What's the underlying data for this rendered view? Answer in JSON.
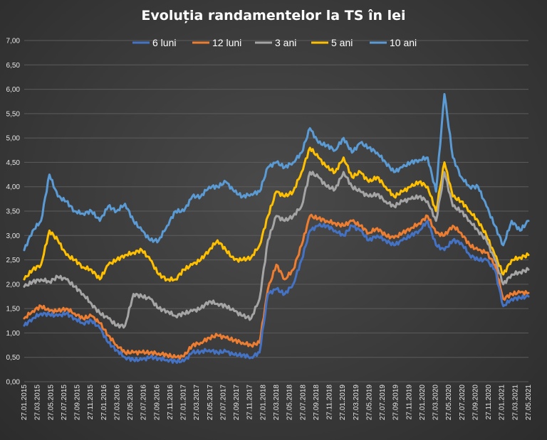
{
  "chart_data": {
    "type": "line",
    "title": "Evoluția  randamentelor  la TS în lei",
    "xlabel": "",
    "ylabel": "",
    "ylim": [
      0,
      7
    ],
    "y_ticks": [
      "0,00",
      "0,50",
      "1,00",
      "1,50",
      "2,00",
      "2,50",
      "3,00",
      "3,50",
      "4,00",
      "4,50",
      "5,00",
      "5,50",
      "6,00",
      "6,50",
      "7,00"
    ],
    "x_tick_labels": [
      "27.01.2015",
      "27.03.2015",
      "27.05.2015",
      "27.07.2015",
      "27.09.2015",
      "27.11.2015",
      "27.01.2016",
      "27.03.2016",
      "27.05.2016",
      "27.07.2016",
      "27.09.2016",
      "27.11.2016",
      "27.01.2017",
      "27.03.2017",
      "27.05.2017",
      "27.07.2017",
      "27.09.2017",
      "27.11.2017",
      "27.01.2018",
      "27.03.2018",
      "27.05.2018",
      "27.07.2018",
      "27.09.2018",
      "27.11.2018",
      "27.01.2019",
      "27.03.2019",
      "27.05.2019",
      "27.07.2019",
      "27.09.2019",
      "27.11.2019",
      "27.01.2020",
      "27.03.2020",
      "27.05.2020",
      "27.07.2020",
      "27.09.2020",
      "27.11.2020",
      "27.01.2021",
      "27.03.2021",
      "27.05.2021"
    ],
    "grid": true,
    "legend_position": "top",
    "series": [
      {
        "name": "6 luni",
        "color": "#4472c4",
        "values": [
          1.15,
          1.3,
          1.4,
          1.38,
          1.35,
          1.4,
          1.3,
          1.2,
          1.25,
          1.1,
          0.8,
          0.65,
          0.5,
          0.45,
          0.45,
          0.5,
          0.48,
          0.45,
          0.42,
          0.42,
          0.6,
          0.62,
          0.65,
          0.6,
          0.62,
          0.55,
          0.55,
          0.5,
          0.6,
          1.8,
          1.9,
          1.8,
          2.0,
          2.5,
          3.1,
          3.2,
          3.2,
          3.1,
          3.0,
          3.2,
          3.1,
          2.9,
          3.0,
          2.9,
          2.8,
          2.9,
          3.0,
          3.1,
          3.3,
          2.8,
          2.7,
          2.9,
          2.85,
          2.6,
          2.5,
          2.5,
          2.3,
          1.55,
          1.7,
          1.72,
          1.75
        ]
      },
      {
        "name": "12 luni",
        "color": "#ed7d31",
        "values": [
          1.3,
          1.45,
          1.55,
          1.45,
          1.45,
          1.5,
          1.4,
          1.3,
          1.35,
          1.2,
          0.95,
          0.75,
          0.6,
          0.6,
          0.6,
          0.6,
          0.58,
          0.55,
          0.5,
          0.52,
          0.75,
          0.8,
          0.9,
          0.95,
          0.9,
          0.85,
          0.8,
          0.75,
          0.8,
          1.9,
          2.4,
          2.1,
          2.3,
          2.8,
          3.4,
          3.35,
          3.3,
          3.25,
          3.2,
          3.3,
          3.2,
          3.05,
          3.15,
          3.0,
          2.95,
          3.05,
          3.15,
          3.25,
          3.4,
          3.05,
          3.0,
          3.2,
          3.05,
          2.8,
          2.7,
          2.65,
          2.4,
          1.7,
          1.8,
          1.83,
          1.82
        ]
      },
      {
        "name": "3 ani",
        "color": "#a5a5a5",
        "values": [
          1.95,
          2.05,
          2.1,
          2.05,
          2.15,
          2.1,
          1.95,
          1.8,
          1.6,
          1.4,
          1.3,
          1.15,
          1.15,
          1.8,
          1.75,
          1.7,
          1.5,
          1.45,
          1.35,
          1.4,
          1.45,
          1.5,
          1.65,
          1.6,
          1.55,
          1.45,
          1.35,
          1.3,
          1.7,
          2.9,
          3.4,
          3.3,
          3.4,
          3.6,
          4.3,
          4.2,
          4.0,
          3.95,
          4.3,
          4.0,
          3.9,
          3.8,
          3.85,
          3.7,
          3.6,
          3.7,
          3.75,
          3.8,
          3.7,
          3.3,
          4.3,
          3.6,
          3.5,
          3.3,
          3.1,
          2.9,
          2.5,
          2.0,
          2.2,
          2.25,
          2.3
        ]
      },
      {
        "name": "5 ani",
        "color": "#ffc000",
        "values": [
          2.1,
          2.3,
          2.4,
          3.1,
          2.9,
          2.6,
          2.5,
          2.35,
          2.3,
          2.1,
          2.4,
          2.5,
          2.6,
          2.65,
          2.7,
          2.5,
          2.2,
          2.1,
          2.1,
          2.3,
          2.4,
          2.5,
          2.7,
          2.9,
          2.7,
          2.5,
          2.5,
          2.55,
          2.8,
          3.4,
          3.9,
          3.8,
          3.9,
          4.3,
          4.8,
          4.6,
          4.4,
          4.3,
          4.6,
          4.2,
          4.3,
          4.1,
          4.2,
          4.0,
          3.8,
          3.9,
          4.0,
          4.1,
          4.0,
          3.5,
          4.5,
          3.8,
          3.7,
          3.5,
          3.3,
          3.0,
          2.6,
          2.2,
          2.5,
          2.55,
          2.6
        ]
      },
      {
        "name": "10 ani",
        "color": "#5b9bd5",
        "values": [
          2.7,
          3.1,
          3.3,
          4.25,
          3.8,
          3.7,
          3.5,
          3.45,
          3.5,
          3.3,
          3.6,
          3.5,
          3.65,
          3.3,
          3.1,
          2.9,
          2.9,
          3.2,
          3.5,
          3.5,
          3.8,
          3.8,
          4.0,
          4.0,
          4.1,
          3.9,
          3.8,
          3.85,
          3.9,
          4.4,
          4.5,
          4.4,
          4.5,
          4.7,
          5.2,
          4.9,
          4.85,
          4.75,
          5.0,
          4.7,
          4.9,
          4.8,
          4.7,
          4.5,
          4.3,
          4.4,
          4.5,
          4.55,
          4.6,
          3.9,
          5.9,
          4.6,
          4.2,
          4.0,
          4.0,
          3.6,
          3.2,
          2.8,
          3.3,
          3.1,
          3.3
        ]
      }
    ]
  }
}
